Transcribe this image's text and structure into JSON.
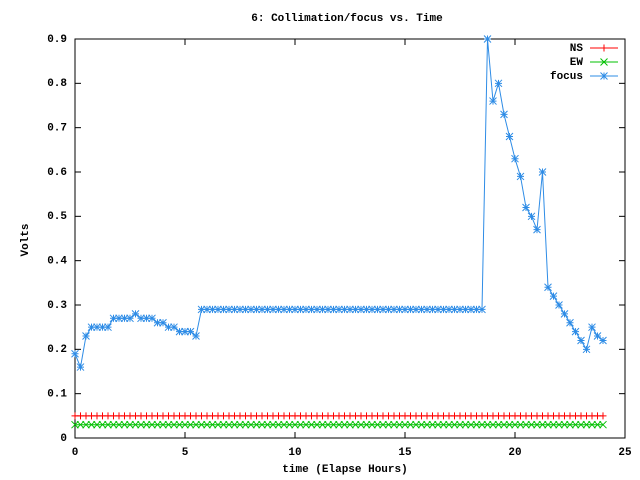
{
  "chart_data": {
    "type": "line",
    "title": "6: Collimation/focus vs. Time",
    "xlabel": "time (Elapse Hours)",
    "ylabel": "Volts",
    "xlim": [
      0,
      25
    ],
    "xticks": [
      0,
      5,
      10,
      15,
      20,
      25
    ],
    "ylim": [
      0,
      0.9
    ],
    "yticks": [
      0,
      0.1,
      0.2,
      0.3,
      0.4,
      0.5,
      0.6,
      0.7,
      0.8,
      0.9
    ],
    "legend": "top-right",
    "x": [
      0,
      0.25,
      0.5,
      0.75,
      1,
      1.25,
      1.5,
      1.75,
      2,
      2.25,
      2.5,
      2.75,
      3,
      3.25,
      3.5,
      3.75,
      4,
      4.25,
      4.5,
      4.75,
      5,
      5.25,
      5.5,
      5.75,
      6,
      6.25,
      6.5,
      6.75,
      7,
      7.25,
      7.5,
      7.75,
      8,
      8.25,
      8.5,
      8.75,
      9,
      9.25,
      9.5,
      9.75,
      10,
      10.25,
      10.5,
      10.75,
      11,
      11.25,
      11.5,
      11.75,
      12,
      12.25,
      12.5,
      12.75,
      13,
      13.25,
      13.5,
      13.75,
      14,
      14.25,
      14.5,
      14.75,
      15,
      15.25,
      15.5,
      15.75,
      16,
      16.25,
      16.5,
      16.75,
      17,
      17.25,
      17.5,
      17.75,
      18,
      18.25,
      18.5,
      18.75,
      19,
      19.25,
      19.5,
      19.75,
      20,
      20.25,
      20.5,
      20.75,
      21,
      21.25,
      21.5,
      21.75,
      22,
      22.25,
      22.5,
      22.75,
      23,
      23.25,
      23.5,
      23.75,
      24
    ],
    "series": [
      {
        "name": "NS",
        "color": "#ff0000",
        "marker": "plus",
        "values": [
          0.05,
          0.05,
          0.05,
          0.05,
          0.05,
          0.05,
          0.05,
          0.05,
          0.05,
          0.05,
          0.05,
          0.05,
          0.05,
          0.05,
          0.05,
          0.05,
          0.05,
          0.05,
          0.05,
          0.05,
          0.05,
          0.05,
          0.05,
          0.05,
          0.05,
          0.05,
          0.05,
          0.05,
          0.05,
          0.05,
          0.05,
          0.05,
          0.05,
          0.05,
          0.05,
          0.05,
          0.05,
          0.05,
          0.05,
          0.05,
          0.05,
          0.05,
          0.05,
          0.05,
          0.05,
          0.05,
          0.05,
          0.05,
          0.05,
          0.05,
          0.05,
          0.05,
          0.05,
          0.05,
          0.05,
          0.05,
          0.05,
          0.05,
          0.05,
          0.05,
          0.05,
          0.05,
          0.05,
          0.05,
          0.05,
          0.05,
          0.05,
          0.05,
          0.05,
          0.05,
          0.05,
          0.05,
          0.05,
          0.05,
          0.05,
          0.05,
          0.05,
          0.05,
          0.05,
          0.05,
          0.05,
          0.05,
          0.05,
          0.05,
          0.05,
          0.05,
          0.05,
          0.05,
          0.05,
          0.05,
          0.05,
          0.05,
          0.05,
          0.05,
          0.05,
          0.05,
          0.05
        ]
      },
      {
        "name": "EW",
        "color": "#00c000",
        "marker": "cross",
        "values": [
          0.03,
          0.03,
          0.03,
          0.03,
          0.03,
          0.03,
          0.03,
          0.03,
          0.03,
          0.03,
          0.03,
          0.03,
          0.03,
          0.03,
          0.03,
          0.03,
          0.03,
          0.03,
          0.03,
          0.03,
          0.03,
          0.03,
          0.03,
          0.03,
          0.03,
          0.03,
          0.03,
          0.03,
          0.03,
          0.03,
          0.03,
          0.03,
          0.03,
          0.03,
          0.03,
          0.03,
          0.03,
          0.03,
          0.03,
          0.03,
          0.03,
          0.03,
          0.03,
          0.03,
          0.03,
          0.03,
          0.03,
          0.03,
          0.03,
          0.03,
          0.03,
          0.03,
          0.03,
          0.03,
          0.03,
          0.03,
          0.03,
          0.03,
          0.03,
          0.03,
          0.03,
          0.03,
          0.03,
          0.03,
          0.03,
          0.03,
          0.03,
          0.03,
          0.03,
          0.03,
          0.03,
          0.03,
          0.03,
          0.03,
          0.03,
          0.03,
          0.03,
          0.03,
          0.03,
          0.03,
          0.03,
          0.03,
          0.03,
          0.03,
          0.03,
          0.03,
          0.03,
          0.03,
          0.03,
          0.03,
          0.03,
          0.03,
          0.03,
          0.03,
          0.03,
          0.03,
          0.03
        ]
      },
      {
        "name": "focus",
        "color": "#2e8ce6",
        "marker": "star",
        "values": [
          0.19,
          0.16,
          0.23,
          0.25,
          0.25,
          0.25,
          0.25,
          0.27,
          0.27,
          0.27,
          0.27,
          0.28,
          0.27,
          0.27,
          0.27,
          0.26,
          0.26,
          0.25,
          0.25,
          0.24,
          0.24,
          0.24,
          0.23,
          0.29,
          0.29,
          0.29,
          0.29,
          0.29,
          0.29,
          0.29,
          0.29,
          0.29,
          0.29,
          0.29,
          0.29,
          0.29,
          0.29,
          0.29,
          0.29,
          0.29,
          0.29,
          0.29,
          0.29,
          0.29,
          0.29,
          0.29,
          0.29,
          0.29,
          0.29,
          0.29,
          0.29,
          0.29,
          0.29,
          0.29,
          0.29,
          0.29,
          0.29,
          0.29,
          0.29,
          0.29,
          0.29,
          0.29,
          0.29,
          0.29,
          0.29,
          0.29,
          0.29,
          0.29,
          0.29,
          0.29,
          0.29,
          0.29,
          0.29,
          0.29,
          0.29,
          0.9,
          0.76,
          0.8,
          0.73,
          0.68,
          0.63,
          0.59,
          0.52,
          0.5,
          0.47,
          0.6,
          0.34,
          0.32,
          0.3,
          0.28,
          0.26,
          0.24,
          0.22,
          0.2,
          0.25,
          0.23,
          0.22
        ]
      }
    ]
  }
}
